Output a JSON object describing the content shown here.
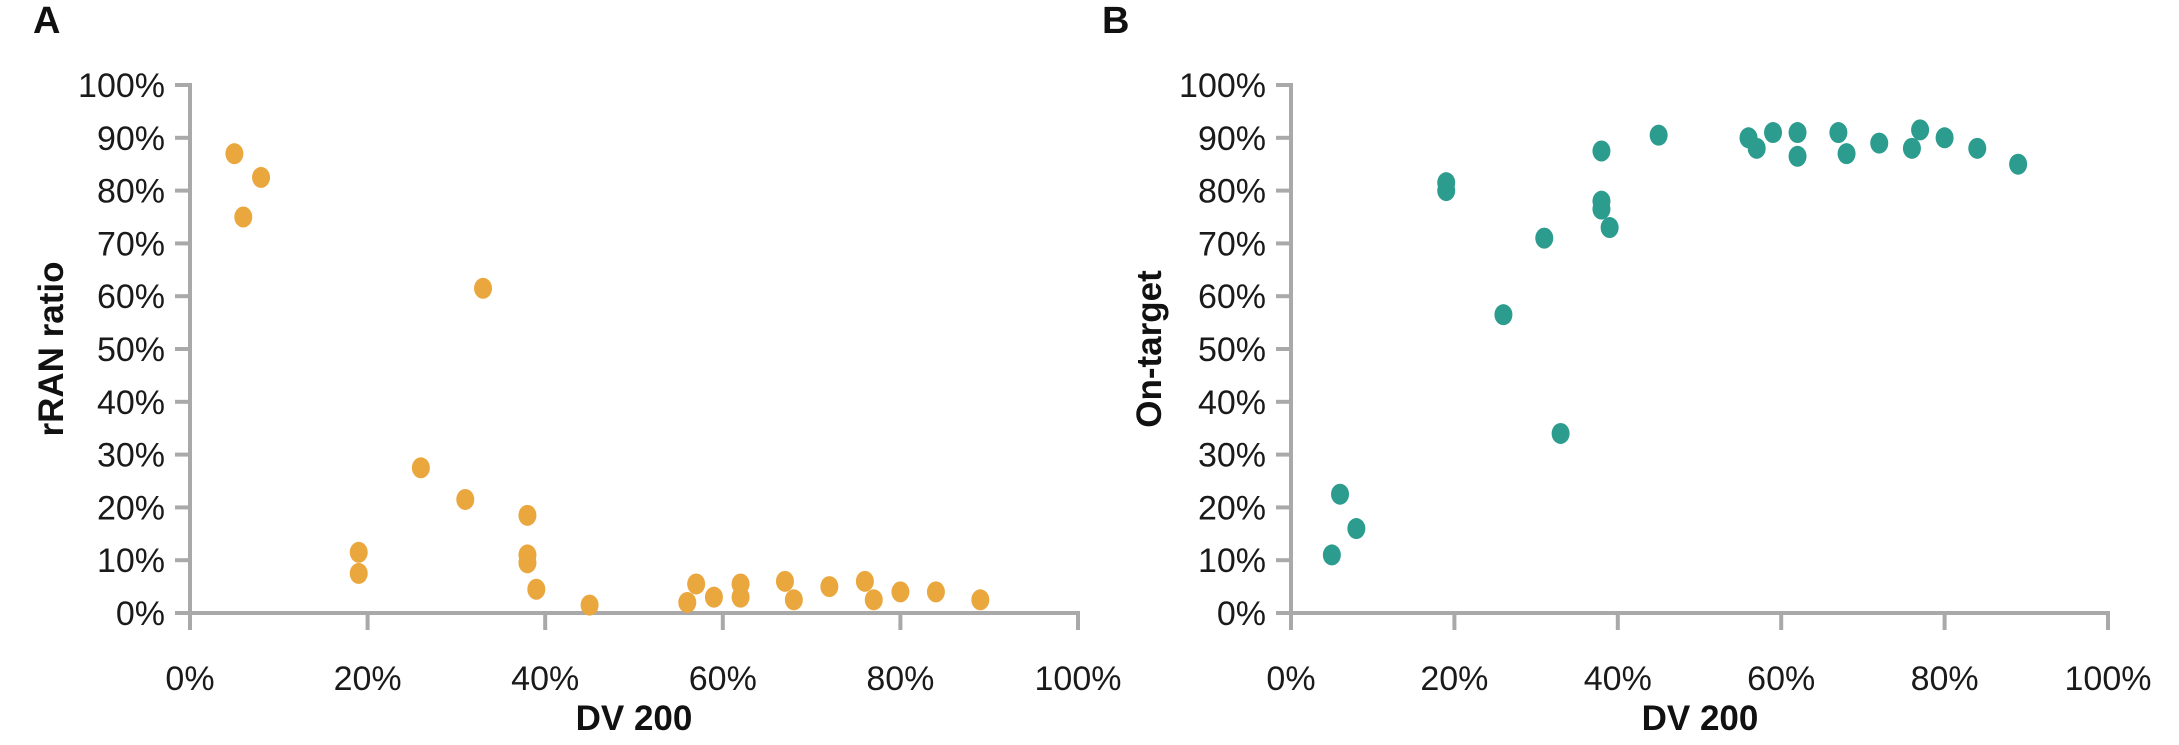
{
  "figure": {
    "panels": [
      {
        "letter": "A",
        "x_title": "DV 200",
        "y_title": "rRAN ratio"
      },
      {
        "letter": "B",
        "x_title": "DV 200",
        "y_title": "On-target"
      }
    ]
  },
  "chart_data": [
    {
      "type": "scatter",
      "panel": "A",
      "title": "",
      "xlabel": "DV 200",
      "ylabel": "rRAN ratio",
      "xlim": [
        0,
        100
      ],
      "ylim": [
        0,
        100
      ],
      "grid": false,
      "legend": "none",
      "x_tick_labels": [
        "0%",
        "20%",
        "40%",
        "60%",
        "80%",
        "100%"
      ],
      "y_tick_labels": [
        "0%",
        "10%",
        "20%",
        "30%",
        "40%",
        "50%",
        "60%",
        "70%",
        "80%",
        "90%",
        "100%"
      ],
      "x_ticks_percent": [
        0,
        20,
        40,
        60,
        80,
        100
      ],
      "y_ticks_percent": [
        0,
        10,
        20,
        30,
        40,
        50,
        60,
        70,
        80,
        90,
        100
      ],
      "marker_color": "#EAA73D",
      "axis_color": "#A9A9A9",
      "points": [
        {
          "x": 5,
          "y": 87
        },
        {
          "x": 6,
          "y": 75
        },
        {
          "x": 8,
          "y": 82.5
        },
        {
          "x": 19,
          "y": 11.5
        },
        {
          "x": 19,
          "y": 7.5
        },
        {
          "x": 26,
          "y": 27.5
        },
        {
          "x": 31,
          "y": 21.5
        },
        {
          "x": 33,
          "y": 61.5
        },
        {
          "x": 38,
          "y": 18.5
        },
        {
          "x": 38,
          "y": 11
        },
        {
          "x": 38,
          "y": 9.5
        },
        {
          "x": 39,
          "y": 4.5
        },
        {
          "x": 45,
          "y": 1.5
        },
        {
          "x": 56,
          "y": 2
        },
        {
          "x": 57,
          "y": 5.5
        },
        {
          "x": 59,
          "y": 3
        },
        {
          "x": 62,
          "y": 5.5
        },
        {
          "x": 62,
          "y": 3
        },
        {
          "x": 67,
          "y": 6
        },
        {
          "x": 68,
          "y": 2.5
        },
        {
          "x": 72,
          "y": 5
        },
        {
          "x": 76,
          "y": 6
        },
        {
          "x": 77,
          "y": 2.5
        },
        {
          "x": 80,
          "y": 4
        },
        {
          "x": 84,
          "y": 4
        },
        {
          "x": 89,
          "y": 2.5
        }
      ]
    },
    {
      "type": "scatter",
      "panel": "B",
      "title": "",
      "xlabel": "DV 200",
      "ylabel": "On-target",
      "xlim": [
        0,
        100
      ],
      "ylim": [
        0,
        100
      ],
      "grid": false,
      "legend": "none",
      "x_tick_labels": [
        "0%",
        "20%",
        "40%",
        "60%",
        "80%",
        "100%"
      ],
      "y_tick_labels": [
        "0%",
        "10%",
        "20%",
        "30%",
        "40%",
        "50%",
        "60%",
        "70%",
        "80%",
        "90%",
        "100%"
      ],
      "x_ticks_percent": [
        0,
        20,
        40,
        60,
        80,
        100
      ],
      "y_ticks_percent": [
        0,
        10,
        20,
        30,
        40,
        50,
        60,
        70,
        80,
        90,
        100
      ],
      "marker_color": "#2B9C8E",
      "axis_color": "#A9A9A9",
      "points": [
        {
          "x": 5,
          "y": 11
        },
        {
          "x": 6,
          "y": 22.5
        },
        {
          "x": 8,
          "y": 16
        },
        {
          "x": 19,
          "y": 81.5
        },
        {
          "x": 19,
          "y": 80
        },
        {
          "x": 26,
          "y": 56.5
        },
        {
          "x": 31,
          "y": 71
        },
        {
          "x": 33,
          "y": 34
        },
        {
          "x": 38,
          "y": 87.5
        },
        {
          "x": 38,
          "y": 78
        },
        {
          "x": 38,
          "y": 76.5
        },
        {
          "x": 39,
          "y": 73
        },
        {
          "x": 45,
          "y": 90.5
        },
        {
          "x": 56,
          "y": 90
        },
        {
          "x": 57,
          "y": 88
        },
        {
          "x": 59,
          "y": 91
        },
        {
          "x": 62,
          "y": 91
        },
        {
          "x": 62,
          "y": 86.5
        },
        {
          "x": 67,
          "y": 91
        },
        {
          "x": 68,
          "y": 87
        },
        {
          "x": 72,
          "y": 89
        },
        {
          "x": 76,
          "y": 88
        },
        {
          "x": 77,
          "y": 91.5
        },
        {
          "x": 80,
          "y": 90
        },
        {
          "x": 84,
          "y": 88
        },
        {
          "x": 89,
          "y": 85
        }
      ]
    }
  ]
}
